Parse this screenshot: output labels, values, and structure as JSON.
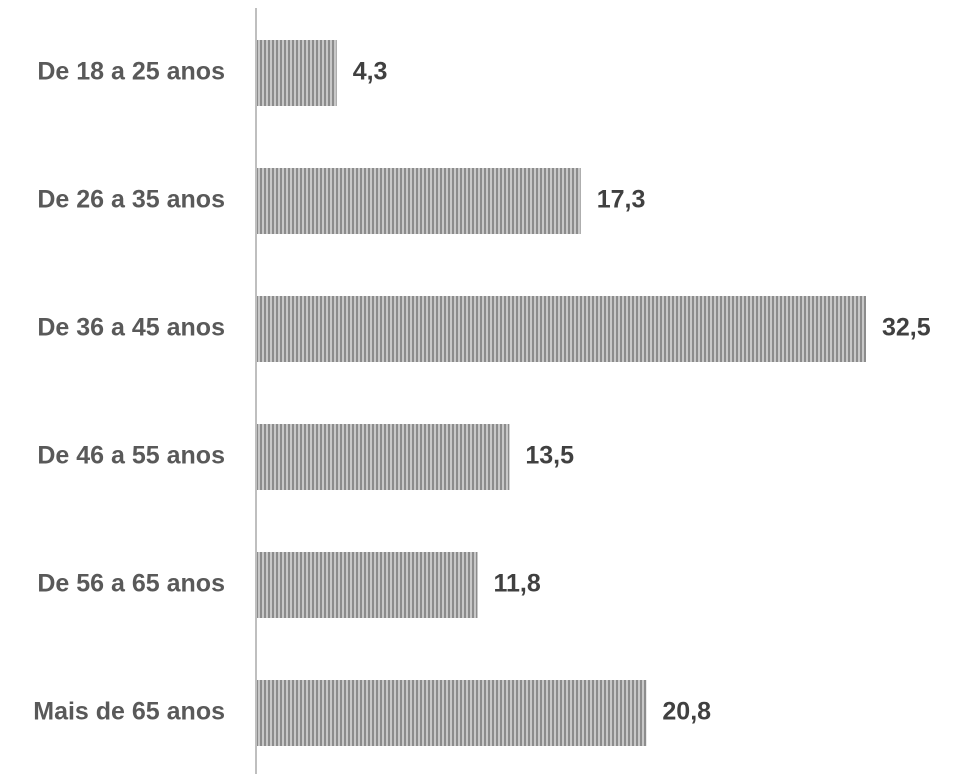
{
  "chart_data": {
    "type": "bar",
    "orientation": "horizontal",
    "categories": [
      "De 18 a 25 anos",
      "De 26 a 35 anos",
      "De 36 a 45 anos",
      "De 46 a 55 anos",
      "De 56 a 65 anos",
      "Mais de 65 anos"
    ],
    "values": [
      4.3,
      17.3,
      32.5,
      13.5,
      11.8,
      20.8
    ],
    "value_labels": [
      "4,3",
      "17,3",
      "32,5",
      "13,5",
      "11,8",
      "20,8"
    ],
    "title": "",
    "xlabel": "",
    "ylabel": "",
    "xlim": [
      0,
      32.5
    ],
    "grid": false,
    "legend": "none",
    "bar_color": "#c8c8c8",
    "bar_stripe_color": "#8c8c8c",
    "axis_color": "#bfbfbf",
    "category_label_color": "#595959",
    "value_label_color": "#404040"
  }
}
